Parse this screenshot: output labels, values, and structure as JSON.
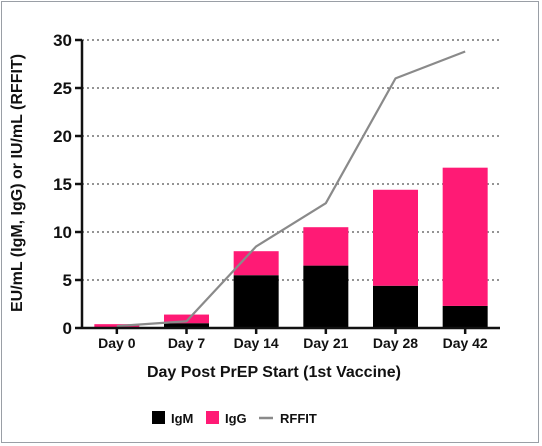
{
  "chart_data": {
    "type": "bar",
    "stacked": true,
    "xlabel": "Day Post PrEP Start (1st Vaccine)",
    "ylabel": "EU/mL (IgM, IgG) or IU/mL (RFFIT)",
    "ylim": [
      0,
      30
    ],
    "yticks": [
      0,
      5,
      10,
      15,
      20,
      25,
      30
    ],
    "grid": "horizontal dotted",
    "legend_position": "bottom",
    "categories": [
      "Day 0",
      "Day 7",
      "Day 14",
      "Day 21",
      "Day 28",
      "Day 42"
    ],
    "series": [
      {
        "name": "IgM",
        "kind": "bar",
        "color": "#000000",
        "values": [
          0.1,
          0.5,
          5.5,
          6.5,
          4.4,
          2.3
        ]
      },
      {
        "name": "IgG",
        "kind": "bar",
        "color": "#ff1a75",
        "values": [
          0.3,
          0.9,
          2.5,
          4.0,
          10.0,
          14.4
        ]
      },
      {
        "name": "RFFIT",
        "kind": "line",
        "color": "#8a8a8a",
        "values": [
          0.2,
          0.7,
          8.5,
          13.0,
          26.0,
          28.8
        ]
      }
    ]
  }
}
